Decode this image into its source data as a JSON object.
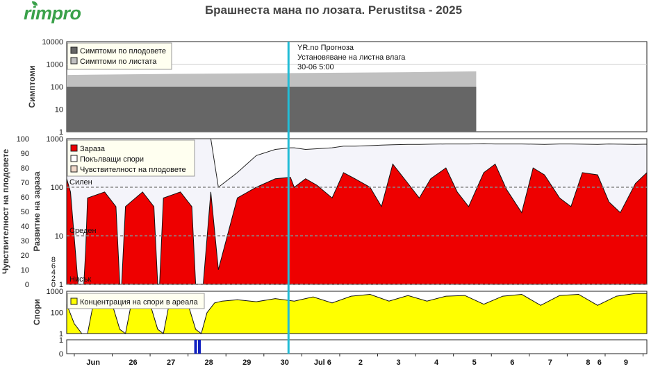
{
  "app": {
    "logo": "rimpro",
    "title": "Брашнеста мана по лозата.  Perustitsa - 2025"
  },
  "colors": {
    "symptoms_fruit": "#666666",
    "symptoms_leaf": "#c0c0c0",
    "infection": "#ee0000",
    "germinating_spores": "#f4f4fa",
    "fruit_susceptibility": "#f0d8c8",
    "spores": "#ffff00",
    "now_line": "#22bcd6",
    "event_bars": "#1020c0",
    "legend_bg": "#fffff0"
  },
  "chart_data": [
    {
      "type": "area",
      "panel": "symptoms",
      "ylabel": "Симптоми",
      "yscale": "log",
      "ylim": [
        1,
        10000
      ],
      "yticks": [
        "10000",
        "1000",
        "100",
        "10",
        "1"
      ],
      "legend": [
        "Симптоми по плодовете",
        "Симптоми по листата"
      ],
      "legend_position": "top-left",
      "forecast_note": {
        "line1": "YR.no Прогноза",
        "line2": "Установяване на листна влага",
        "line3": "30-06 5:00"
      },
      "x": [
        0,
        3,
        6,
        9,
        10.8
      ],
      "series": [
        {
          "name": "Симптоми по листата",
          "values": [
            330,
            370,
            400,
            440,
            480
          ]
        },
        {
          "name": "Симптоми по плодовете",
          "values": [
            100,
            100,
            100,
            100,
            100
          ]
        }
      ]
    },
    {
      "type": "area",
      "panel": "infection",
      "ylabel": "Развитие на зараза",
      "ylabel2": "Чувствителност на плодовете",
      "yscale": "log",
      "ylim": [
        1,
        1000
      ],
      "yticks": [
        "1000",
        "100",
        "10",
        "1"
      ],
      "y2lim": [
        0,
        100
      ],
      "y2ticks": [
        "100",
        "90",
        "80",
        "70",
        "60",
        "50",
        "40",
        "30",
        "20",
        "10",
        "0"
      ],
      "y2ticks_inner": [
        "8",
        "6",
        "4",
        "2",
        "0"
      ],
      "thresholds": [
        {
          "label": "Силен",
          "value": 100
        },
        {
          "label": "Среден",
          "value": 10
        },
        {
          "label": "Нисък",
          "value": 1
        }
      ],
      "legend": [
        "Зараза",
        "Покълващи спори",
        "Чувствителност на плодовете"
      ],
      "legend_position": "top-left",
      "x": [
        0,
        0.1,
        0.3,
        0.45,
        0.5,
        0.55,
        1.0,
        1.3,
        1.4,
        1.45,
        1.55,
        2.0,
        2.3,
        2.4,
        2.45,
        2.55,
        3.0,
        3.3,
        3.4,
        3.6,
        3.8,
        4.0,
        4.5,
        5.0,
        5.5,
        5.9,
        6.0,
        6.3,
        6.6,
        7.0,
        7.3,
        7.6,
        8.0,
        8.3,
        8.6,
        9.0,
        9.3,
        9.6,
        10.0,
        10.3,
        10.6,
        11.0,
        11.3,
        11.6,
        12.0,
        12.3,
        12.6,
        13.0,
        13.3,
        13.6,
        14.0,
        14.3,
        14.6,
        15.0,
        15.3
      ],
      "series": [
        {
          "name": "Зараза",
          "values": [
            150,
            80,
            1,
            1,
            5,
            60,
            80,
            40,
            1,
            1,
            40,
            80,
            40,
            1,
            1,
            60,
            80,
            40,
            1,
            1,
            80,
            2,
            60,
            100,
            150,
            160,
            100,
            150,
            110,
            60,
            200,
            150,
            100,
            40,
            300,
            120,
            60,
            150,
            250,
            80,
            40,
            200,
            300,
            90,
            30,
            250,
            180,
            60,
            40,
            200,
            180,
            50,
            30,
            120,
            200
          ]
        },
        {
          "name": "Покълващи спори",
          "values": [
            1000,
            1000,
            1000,
            1000,
            1000,
            1000,
            1000,
            1000,
            1000,
            1000,
            1000,
            1000,
            1000,
            1000,
            1000,
            1000,
            1000,
            1000,
            1000,
            1000,
            1000,
            100,
            200,
            450,
            600,
            650,
            650,
            600,
            620,
            650,
            700,
            700,
            720,
            740,
            750,
            760,
            760,
            770,
            780,
            780,
            780,
            790,
            780,
            780,
            780,
            770,
            760,
            780,
            780,
            770,
            760,
            780,
            770,
            760,
            770
          ]
        }
      ]
    },
    {
      "type": "area",
      "panel": "spores",
      "ylabel": "Спори",
      "yscale": "log",
      "ylim": [
        1,
        1000
      ],
      "yticks": [
        "1000",
        "100",
        "1"
      ],
      "legend": [
        "Концентрация на спори в ареала"
      ],
      "legend_position": "top-left",
      "x": [
        0,
        0.2,
        0.4,
        0.55,
        0.7,
        0.9,
        1.2,
        1.4,
        1.55,
        1.7,
        1.9,
        2.2,
        2.4,
        2.55,
        2.7,
        2.9,
        3.2,
        3.4,
        3.55,
        3.7,
        3.9,
        4.1,
        4.5,
        5.0,
        5.5,
        6.0,
        6.5,
        7.0,
        7.5,
        8.0,
        8.5,
        9.0,
        9.5,
        10.0,
        10.5,
        11.0,
        11.5,
        12.0,
        12.5,
        13.0,
        13.5,
        14.0,
        14.5,
        15.0,
        15.3
      ],
      "series": [
        {
          "name": "Концентрация на спори в ареала",
          "values": [
            120,
            5,
            1,
            1,
            120,
            200,
            120,
            2,
            1,
            120,
            200,
            120,
            2,
            1,
            120,
            200,
            120,
            2,
            1,
            30,
            150,
            200,
            250,
            180,
            300,
            200,
            400,
            150,
            450,
            600,
            200,
            500,
            200,
            450,
            500,
            120,
            450,
            600,
            100,
            500,
            600,
            100,
            450,
            700,
            700
          ]
        }
      ]
    },
    {
      "type": "bar",
      "panel": "events",
      "ylim": [
        0,
        1
      ],
      "yticks": [
        "1",
        "0"
      ],
      "x": [
        3.4,
        3.5
      ],
      "values": [
        1,
        1
      ],
      "xaxis": {
        "labels": [
          "Jun",
          "26",
          "27",
          "28",
          "29",
          "30",
          "Jul 6",
          "2",
          "3",
          "4",
          "5",
          "6",
          "7",
          "8",
          "6",
          "9"
        ],
        "positions": [
          0.7,
          1.75,
          2.75,
          3.75,
          4.75,
          5.75,
          6.75,
          7.75,
          8.75,
          9.75,
          10.75,
          11.75,
          12.75,
          13.75,
          14.05,
          14.75
        ]
      },
      "now_x": 5.85
    }
  ]
}
